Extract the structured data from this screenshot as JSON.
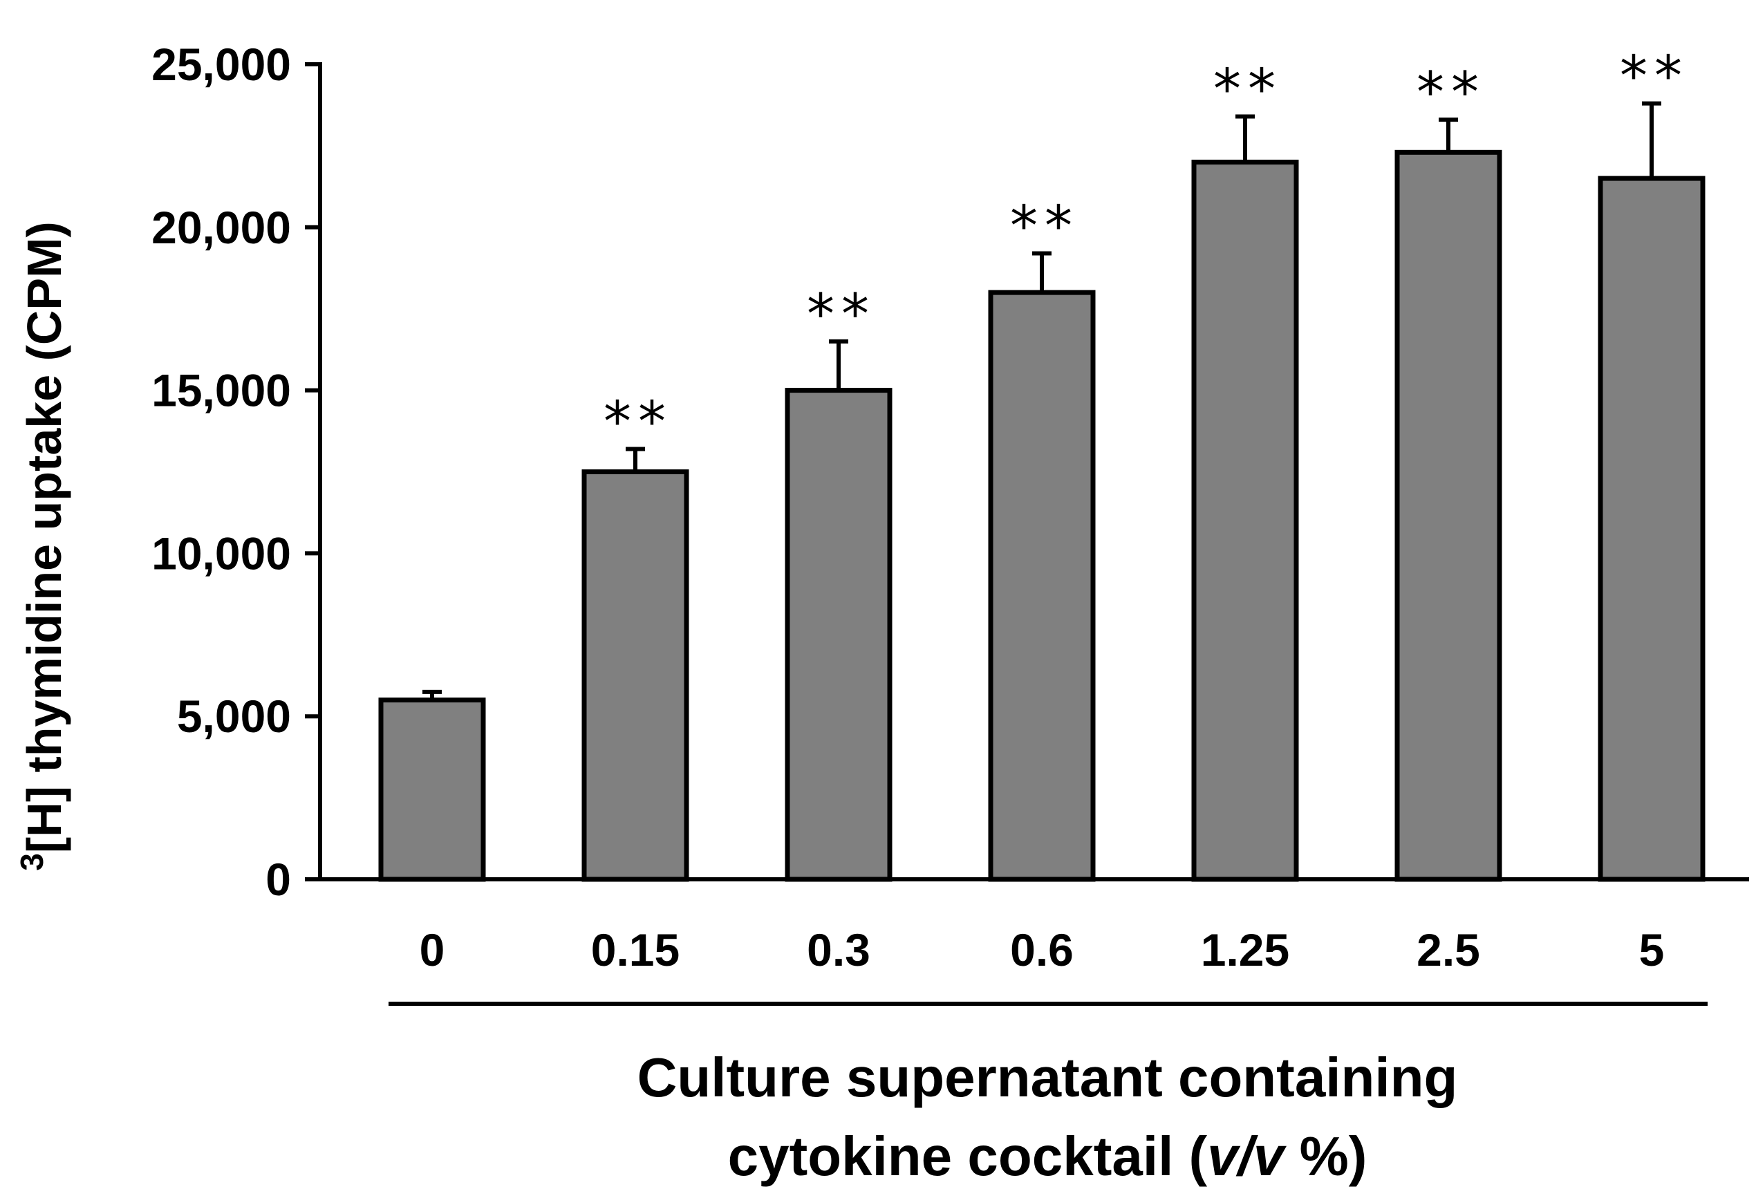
{
  "chart_data": {
    "type": "bar",
    "title": "",
    "ylabel": {
      "superscript": "3",
      "text": "[H] thymidine uptake  (CPM)"
    },
    "xlabel": {
      "line1": "Culture supernatant containing",
      "line2_prefix": "cytokine cocktail (",
      "line2_italic": "v/v",
      "line2_suffix": " %)"
    },
    "ylim": [
      0,
      25000
    ],
    "yticks": [
      0,
      5000,
      10000,
      15000,
      20000,
      25000
    ],
    "ytick_labels": [
      "0",
      "5,000",
      "10,000",
      "15,000",
      "20,000",
      "25,000"
    ],
    "categories": [
      "0",
      "0.15",
      "0.3",
      "0.6",
      "1.25",
      "2.5",
      "5"
    ],
    "values": [
      5500,
      12500,
      15000,
      18000,
      22000,
      22300,
      21500
    ],
    "errors": [
      250,
      700,
      1500,
      1200,
      1400,
      1000,
      2300
    ],
    "significance": [
      "",
      "**",
      "**",
      "**",
      "**",
      "**",
      "**"
    ],
    "bar_color": "#808080",
    "edge_color": "#000000",
    "grid": false
  }
}
